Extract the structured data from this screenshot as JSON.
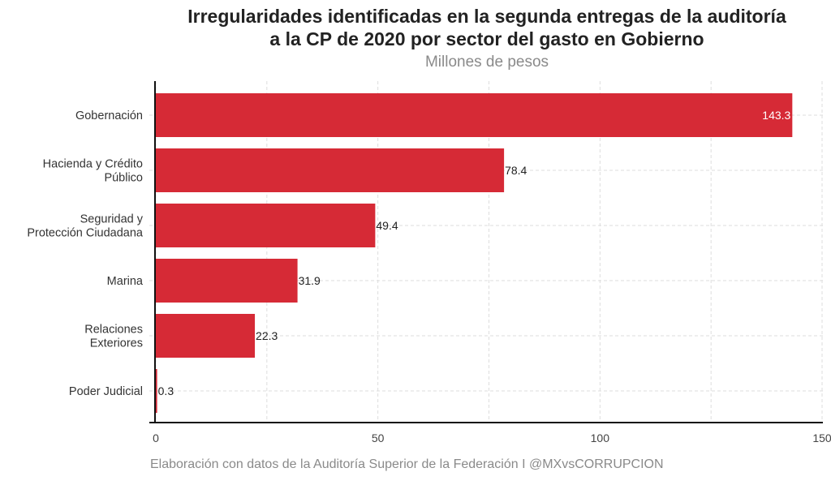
{
  "title_line1": "Irregularidades identificadas en la segunda entregas de la auditoría",
  "title_line2": "a la CP de 2020 por sector del gasto en Gobierno",
  "subtitle": "Millones de pesos",
  "caption": "Elaboración con datos de la Auditoría Superior de la Federación I @MXvsCORRUPCION",
  "chart_data": {
    "type": "bar",
    "orientation": "horizontal",
    "categories": [
      [
        "Gobernación"
      ],
      [
        "Hacienda y Crédito",
        "Público"
      ],
      [
        "Seguridad y",
        "Protección Ciudadana"
      ],
      [
        "Marina"
      ],
      [
        "Relaciones",
        "Exteriores"
      ],
      [
        "Poder Judicial"
      ]
    ],
    "values": [
      143.3,
      78.4,
      49.4,
      31.9,
      22.3,
      0.3
    ],
    "data_labels": [
      "143.3",
      "78.4",
      "49.4",
      "31.9",
      "22.3",
      "0.3"
    ],
    "xlim": [
      0,
      150
    ],
    "xticks": [
      0,
      50,
      100,
      150
    ],
    "bar_color": "#d62a36",
    "grid": true
  }
}
